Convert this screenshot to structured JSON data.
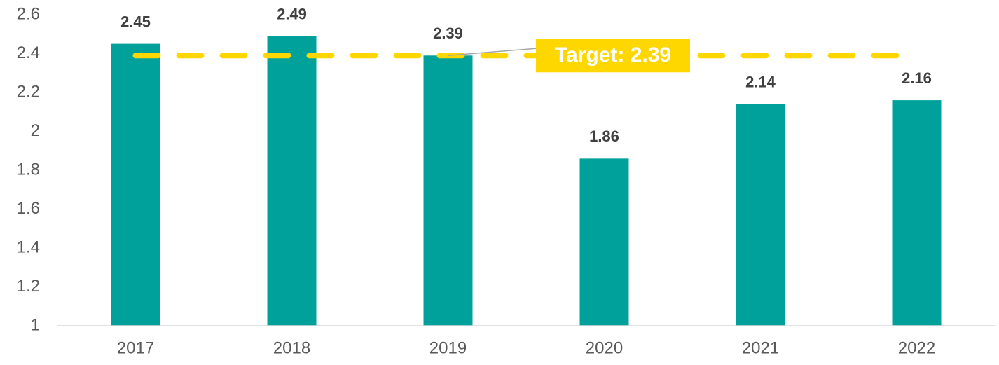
{
  "chart_data": {
    "type": "bar",
    "categories": [
      "2017",
      "2018",
      "2019",
      "2020",
      "2021",
      "2022"
    ],
    "values": [
      2.45,
      2.49,
      2.39,
      1.86,
      2.14,
      2.16
    ],
    "color": "#00a19a",
    "ylim": [
      1,
      2.6
    ],
    "yticks": [
      1,
      1.2,
      1.4,
      1.6,
      1.8,
      2,
      2.2,
      2.4,
      2.6
    ],
    "grid": false,
    "target": {
      "value": 2.39,
      "label": "Target: 2.39",
      "color": "#ffd700"
    }
  }
}
